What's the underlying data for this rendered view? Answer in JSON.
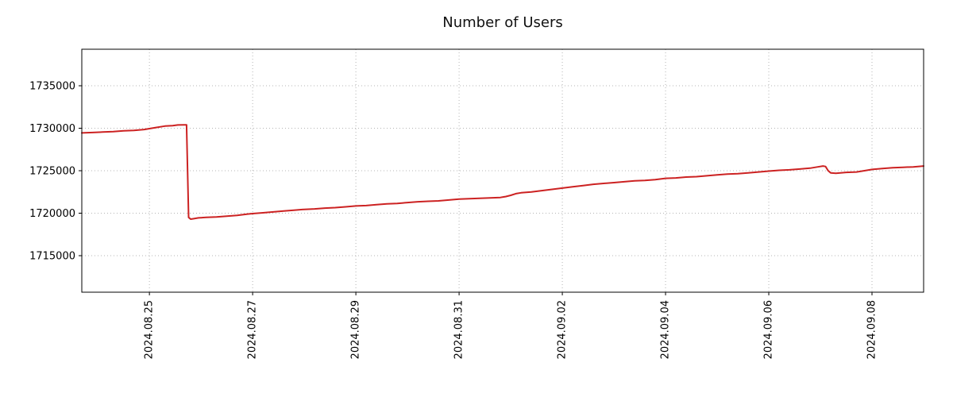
{
  "colors": {
    "line": "#cc2222",
    "grid": "#b4b4b4",
    "axis": "#000000",
    "tick_text": "#000000",
    "background": "#ffffff"
  },
  "chart_data": {
    "type": "line",
    "title": "Number of Users",
    "xlabel": "",
    "ylabel": "",
    "legend": "none",
    "grid": "dotted",
    "x_unit": "days since 2024-08-25",
    "xlim": [
      -1.31,
      15.0
    ],
    "ylim": [
      1710700,
      1739300
    ],
    "y_ticks": [
      1715000,
      1720000,
      1725000,
      1730000,
      1735000
    ],
    "x_ticks": [
      {
        "pos": 0,
        "label": "2024.08.25"
      },
      {
        "pos": 2,
        "label": "2024.08.27"
      },
      {
        "pos": 4,
        "label": "2024.08.29"
      },
      {
        "pos": 6,
        "label": "2024.08.31"
      },
      {
        "pos": 8,
        "label": "2024.09.02"
      },
      {
        "pos": 10,
        "label": "2024.09.04"
      },
      {
        "pos": 12,
        "label": "2024.09.06"
      },
      {
        "pos": 14,
        "label": "2024.09.08"
      }
    ],
    "series": [
      {
        "name": "users",
        "points": [
          [
            -1.31,
            1729450
          ],
          [
            -1.1,
            1729500
          ],
          [
            -0.9,
            1729550
          ],
          [
            -0.7,
            1729600
          ],
          [
            -0.5,
            1729700
          ],
          [
            -0.3,
            1729750
          ],
          [
            -0.1,
            1729850
          ],
          [
            0.0,
            1729950
          ],
          [
            0.15,
            1730100
          ],
          [
            0.3,
            1730250
          ],
          [
            0.45,
            1730300
          ],
          [
            0.55,
            1730380
          ],
          [
            0.68,
            1730400
          ],
          [
            0.72,
            1730400
          ],
          [
            0.76,
            1719500
          ],
          [
            0.8,
            1719300
          ],
          [
            0.85,
            1719350
          ],
          [
            0.95,
            1719450
          ],
          [
            1.1,
            1719500
          ],
          [
            1.3,
            1719550
          ],
          [
            1.5,
            1719650
          ],
          [
            1.7,
            1719750
          ],
          [
            1.9,
            1719900
          ],
          [
            2.0,
            1719950
          ],
          [
            2.2,
            1720050
          ],
          [
            2.4,
            1720150
          ],
          [
            2.6,
            1720250
          ],
          [
            2.8,
            1720350
          ],
          [
            3.0,
            1720450
          ],
          [
            3.2,
            1720500
          ],
          [
            3.4,
            1720600
          ],
          [
            3.6,
            1720650
          ],
          [
            3.8,
            1720750
          ],
          [
            4.0,
            1720850
          ],
          [
            4.2,
            1720900
          ],
          [
            4.4,
            1721000
          ],
          [
            4.6,
            1721100
          ],
          [
            4.8,
            1721150
          ],
          [
            5.0,
            1721250
          ],
          [
            5.2,
            1721350
          ],
          [
            5.4,
            1721400
          ],
          [
            5.6,
            1721450
          ],
          [
            5.8,
            1721550
          ],
          [
            6.0,
            1721650
          ],
          [
            6.2,
            1721700
          ],
          [
            6.4,
            1721750
          ],
          [
            6.6,
            1721800
          ],
          [
            6.8,
            1721850
          ],
          [
            6.9,
            1721950
          ],
          [
            7.0,
            1722100
          ],
          [
            7.1,
            1722300
          ],
          [
            7.2,
            1722400
          ],
          [
            7.4,
            1722500
          ],
          [
            7.6,
            1722650
          ],
          [
            7.8,
            1722800
          ],
          [
            8.0,
            1722950
          ],
          [
            8.2,
            1723100
          ],
          [
            8.4,
            1723250
          ],
          [
            8.6,
            1723400
          ],
          [
            8.8,
            1723500
          ],
          [
            9.0,
            1723600
          ],
          [
            9.2,
            1723700
          ],
          [
            9.4,
            1723800
          ],
          [
            9.6,
            1723850
          ],
          [
            9.8,
            1723950
          ],
          [
            10.0,
            1724100
          ],
          [
            10.2,
            1724150
          ],
          [
            10.4,
            1724250
          ],
          [
            10.6,
            1724300
          ],
          [
            10.8,
            1724400
          ],
          [
            11.0,
            1724500
          ],
          [
            11.2,
            1724600
          ],
          [
            11.4,
            1724650
          ],
          [
            11.6,
            1724750
          ],
          [
            11.8,
            1724850
          ],
          [
            12.0,
            1724950
          ],
          [
            12.2,
            1725050
          ],
          [
            12.4,
            1725100
          ],
          [
            12.6,
            1725200
          ],
          [
            12.8,
            1725300
          ],
          [
            12.95,
            1725450
          ],
          [
            13.05,
            1725550
          ],
          [
            13.1,
            1725500
          ],
          [
            13.15,
            1725000
          ],
          [
            13.2,
            1724750
          ],
          [
            13.3,
            1724700
          ],
          [
            13.5,
            1724800
          ],
          [
            13.7,
            1724850
          ],
          [
            13.9,
            1725050
          ],
          [
            14.0,
            1725150
          ],
          [
            14.2,
            1725250
          ],
          [
            14.4,
            1725350
          ],
          [
            14.6,
            1725400
          ],
          [
            14.8,
            1725450
          ],
          [
            15.0,
            1725550
          ]
        ]
      }
    ]
  }
}
